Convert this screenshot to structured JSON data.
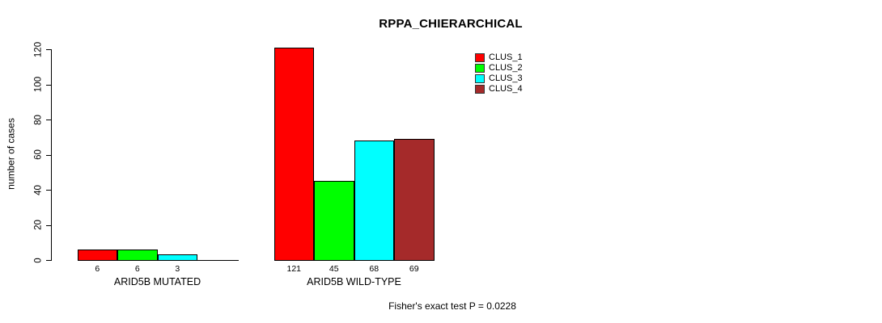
{
  "title": "RPPA_CHIERARCHICAL",
  "footer": "Fisher's exact test P = 0.0228",
  "chart_data": {
    "type": "bar",
    "title": "RPPA_CHIERARCHICAL",
    "xlabel": "",
    "ylabel": "number of cases",
    "ylim": [
      0,
      120
    ],
    "y_ticks": [
      0,
      20,
      40,
      60,
      80,
      100,
      120
    ],
    "grid": false,
    "legend_position": "top-right",
    "categories": [
      "ARID5B MUTATED",
      "ARID5B WILD-TYPE"
    ],
    "series": [
      {
        "name": "CLUS_1",
        "color": "#FF0000",
        "values": [
          6,
          121
        ]
      },
      {
        "name": "CLUS_2",
        "color": "#00FF00",
        "values": [
          6,
          45
        ]
      },
      {
        "name": "CLUS_3",
        "color": "#00FFFF",
        "values": [
          3,
          68
        ]
      },
      {
        "name": "CLUS_4",
        "color": "#A52A2A",
        "values": [
          0,
          69
        ]
      }
    ],
    "bar_labels": [
      [
        "6",
        "6",
        "3",
        ""
      ],
      [
        "121",
        "45",
        "68",
        "69"
      ]
    ],
    "annotation": "Fisher's exact test P = 0.0228"
  }
}
